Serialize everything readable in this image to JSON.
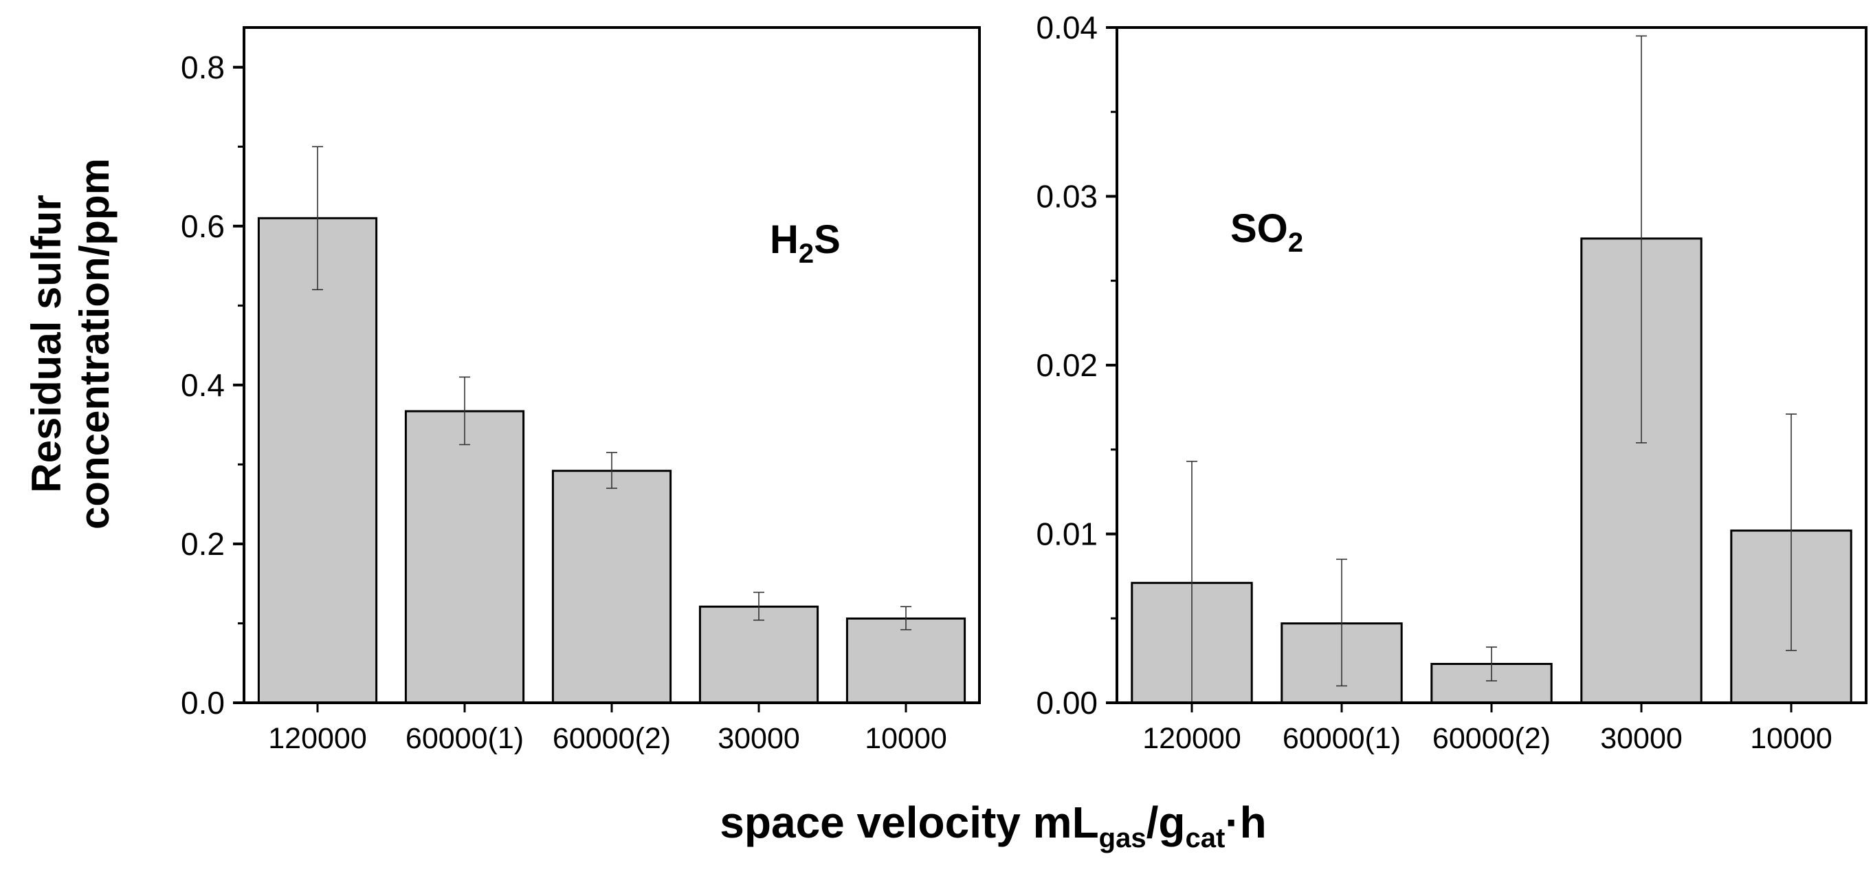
{
  "figure": {
    "ylabel_line1": "Residual sulfur",
    "ylabel_line2": "concentration/ppm",
    "xlabel": {
      "main": "space velocity mL",
      "sub1": "gas",
      "mid": "/g",
      "sub2": "cat",
      "tail": "·h"
    }
  },
  "colors": {
    "bar_fill": "#c8c8c8",
    "bar_stroke": "#000000",
    "axis": "#000000",
    "background": "#ffffff"
  },
  "chart_data": [
    {
      "type": "bar",
      "title": "",
      "annotation": {
        "main": "H",
        "sub": "2",
        "tail": "S"
      },
      "xlabel": "space velocity mLgas/gcat·h",
      "ylabel": "Residual sulfur concentration/ppm",
      "categories": [
        "120000",
        "60000(1)",
        "60000(2)",
        "30000",
        "10000"
      ],
      "values": [
        0.61,
        0.367,
        0.292,
        0.121,
        0.106
      ],
      "errors": [
        [
          0.52,
          0.7
        ],
        [
          0.325,
          0.41
        ],
        [
          0.27,
          0.315
        ],
        [
          0.104,
          0.139
        ],
        [
          0.092,
          0.121
        ]
      ],
      "ylim": [
        0,
        0.85
      ],
      "yticks": [
        0.0,
        0.2,
        0.4,
        0.6,
        0.8
      ],
      "ytick_labels": [
        "0.0",
        "0.2",
        "0.4",
        "0.6",
        "0.8"
      ],
      "grid": false,
      "legend": "none"
    },
    {
      "type": "bar",
      "title": "",
      "annotation": {
        "main": "SO",
        "sub": "2",
        "tail": ""
      },
      "xlabel": "space velocity mLgas/gcat·h",
      "ylabel": "Residual sulfur concentration/ppm",
      "categories": [
        "120000",
        "60000(1)",
        "60000(2)",
        "30000",
        "10000"
      ],
      "values": [
        0.0071,
        0.0047,
        0.0023,
        0.0275,
        0.0102
      ],
      "errors": [
        [
          0.0,
          0.0143
        ],
        [
          0.001,
          0.0085
        ],
        [
          0.0013,
          0.0033
        ],
        [
          0.0154,
          0.0395
        ],
        [
          0.0031,
          0.0171
        ]
      ],
      "ylim": [
        0,
        0.04
      ],
      "yticks": [
        0.0,
        0.01,
        0.02,
        0.03,
        0.04
      ],
      "ytick_labels": [
        "0.00",
        "0.01",
        "0.02",
        "0.03",
        "0.04"
      ],
      "grid": false,
      "legend": "none"
    }
  ]
}
